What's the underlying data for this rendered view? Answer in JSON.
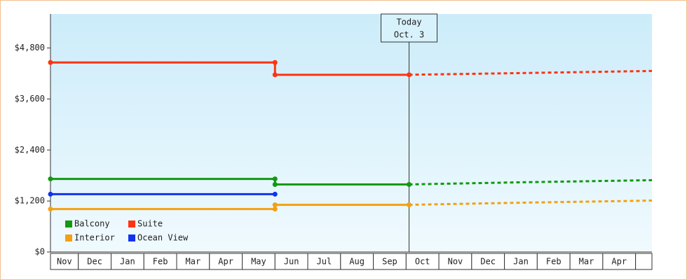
{
  "chart_data": {
    "type": "step-line",
    "categories": [
      "Nov",
      "Dec",
      "Jan",
      "Feb",
      "Mar",
      "Apr",
      "May",
      "Jun",
      "Jul",
      "Aug",
      "Sep",
      "Oct",
      "Nov",
      "Dec",
      "Jan",
      "Feb",
      "Mar",
      "Apr",
      null
    ],
    "xlim": [
      0.15,
      18.5
    ],
    "ylim": [
      0,
      5600
    ],
    "yticks": [
      {
        "value": 0,
        "label": "$0"
      },
      {
        "value": 1200,
        "label": "$1,200"
      },
      {
        "value": 2400,
        "label": "$2,400"
      },
      {
        "value": 3600,
        "label": "$3,600"
      },
      {
        "value": 4800,
        "label": "$4,800"
      }
    ],
    "today": {
      "x": 11.09,
      "label": [
        "Today",
        "Oct. 3"
      ]
    },
    "legend": "bottom-left",
    "series": [
      {
        "name": "Balcony",
        "color": "#119911",
        "x": [
          0.15,
          7,
          7,
          11.09
        ],
        "values": [
          1720,
          1720,
          1590,
          1590
        ],
        "forecast_x": [
          11.09,
          14.5,
          18.5
        ],
        "forecast_values": [
          1590,
          1640,
          1690
        ]
      },
      {
        "name": "Suite",
        "color": "#ff3311",
        "x": [
          0.15,
          7,
          7,
          11.09
        ],
        "values": [
          4460,
          4460,
          4170,
          4170
        ],
        "forecast_x": [
          11.09,
          14.5,
          18.5
        ],
        "forecast_values": [
          4170,
          4210,
          4260
        ]
      },
      {
        "name": "Interior",
        "color": "#f4a010",
        "x": [
          0.15,
          7,
          7,
          11.09
        ],
        "values": [
          1010,
          1010,
          1110,
          1110
        ],
        "forecast_x": [
          11.09,
          14.5,
          18.5
        ],
        "forecast_values": [
          1110,
          1160,
          1210
        ]
      },
      {
        "name": "Ocean View",
        "color": "#1133ee",
        "x": [
          0.15,
          7
        ],
        "values": [
          1360,
          1360
        ],
        "forecast_x": [],
        "forecast_values": []
      }
    ]
  }
}
